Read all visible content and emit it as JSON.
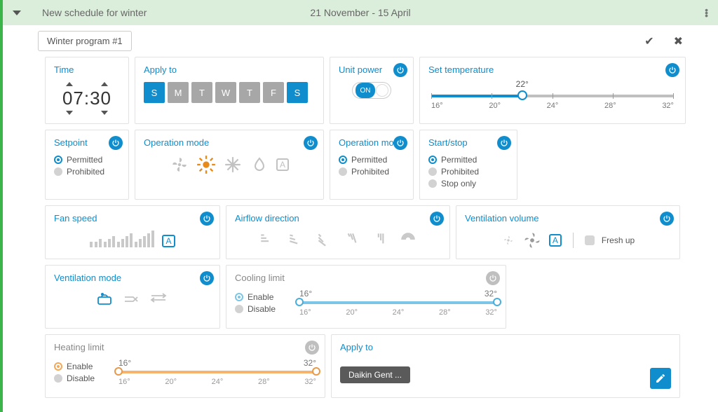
{
  "colors": {
    "accent": "#0f8dcc",
    "muted": "#a7a7a7",
    "header_bg": "#dbeedb",
    "border_green": "#3bb54a",
    "orange": "#e68a1a",
    "cool_fill": "#7cc5e6",
    "heat_fill": "#f5b36f"
  },
  "header": {
    "title": "New schedule for winter",
    "date_range": "21 November - 15 April"
  },
  "program": {
    "name": "Winter program #1"
  },
  "cards": {
    "time": {
      "title": "Time",
      "value": "07:30"
    },
    "apply_days": {
      "title": "Apply to",
      "days": [
        {
          "label": "S",
          "selected": true
        },
        {
          "label": "M",
          "selected": false
        },
        {
          "label": "T",
          "selected": false
        },
        {
          "label": "W",
          "selected": false
        },
        {
          "label": "T",
          "selected": false
        },
        {
          "label": "F",
          "selected": false
        },
        {
          "label": "S",
          "selected": true
        }
      ]
    },
    "unit_power": {
      "title": "Unit power",
      "state_label": "ON",
      "on": true
    },
    "set_temp": {
      "title": "Set temperature",
      "value": 22,
      "value_label": "22°",
      "min": 16,
      "max": 32,
      "tick_labels": [
        "16°",
        "20°",
        "24°",
        "28°",
        "32°"
      ],
      "fill_pct": 37.5
    },
    "setpoint": {
      "title": "Setpoint",
      "options": [
        {
          "label": "Permitted",
          "selected": true
        },
        {
          "label": "Prohibited",
          "selected": false
        }
      ]
    },
    "op_mode_icons": {
      "title": "Operation mode"
    },
    "op_mode_radio": {
      "title": "Operation mode",
      "options": [
        {
          "label": "Permitted",
          "selected": true
        },
        {
          "label": "Prohibited",
          "selected": false
        }
      ]
    },
    "start_stop": {
      "title": "Start/stop",
      "options": [
        {
          "label": "Permitted",
          "selected": true
        },
        {
          "label": "Prohibited",
          "selected": false
        },
        {
          "label": "Stop only",
          "selected": false
        }
      ]
    },
    "fan_speed": {
      "title": "Fan speed"
    },
    "airflow": {
      "title": "Airflow direction"
    },
    "vent_vol": {
      "title": "Ventilation volume",
      "freshup_label": "Fresh up"
    },
    "vent_mode": {
      "title": "Ventilation mode"
    },
    "cool_limit": {
      "title": "Cooling limit",
      "options": [
        {
          "label": "Enable",
          "selected": true
        },
        {
          "label": "Disable",
          "selected": false
        }
      ],
      "low": 16,
      "high": 32,
      "low_label": "16°",
      "high_label": "32°",
      "ticks": [
        "16°",
        "20°",
        "24°",
        "28°",
        "32°"
      ],
      "fill_color": "#7cc5e6",
      "handle_border": "#49aedd"
    },
    "heat_limit": {
      "title": "Heating limit",
      "options": [
        {
          "label": "Enable",
          "selected": true
        },
        {
          "label": "Disable",
          "selected": false
        }
      ],
      "low": 16,
      "high": 32,
      "low_label": "16°",
      "high_label": "32°",
      "ticks": [
        "16°",
        "20°",
        "24°",
        "28°",
        "32°"
      ],
      "fill_color": "#f5b36f",
      "handle_border": "#e89a4a"
    },
    "apply_units": {
      "title": "Apply to",
      "tag": "Daikin Gent ..."
    }
  }
}
